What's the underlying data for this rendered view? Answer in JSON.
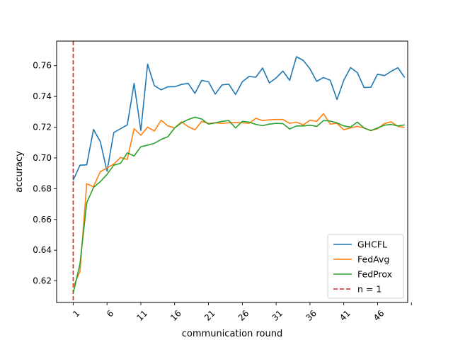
{
  "chart_data": {
    "type": "line",
    "title": "",
    "xlabel": "communication round",
    "ylabel": "accuracy",
    "xlim": [
      -1.45,
      50.45
    ],
    "ylim": [
      0.606,
      0.776
    ],
    "xticks": [
      1,
      6,
      11,
      16,
      21,
      26,
      31,
      36,
      41,
      46,
      51
    ],
    "xtick_labels": [
      "1",
      "6",
      "11",
      "16",
      "21",
      "26",
      "31",
      "36",
      "41",
      "46",
      ""
    ],
    "yticks": [
      0.62,
      0.64,
      0.66,
      0.68,
      0.7,
      0.72,
      0.74,
      0.76
    ],
    "ytick_labels": [
      "0.62",
      "0.64",
      "0.66",
      "0.68",
      "0.70",
      "0.72",
      "0.74",
      "0.76"
    ],
    "grid": false,
    "legend_position": "lower-right",
    "series": [
      {
        "name": "GHCFL",
        "color": "#1f77b4",
        "x_start": 1,
        "values": [
          0.6855,
          0.6953,
          0.6955,
          0.7185,
          0.7107,
          0.6913,
          0.7165,
          0.719,
          0.7215,
          0.7485,
          0.7178,
          0.761,
          0.747,
          0.7443,
          0.7463,
          0.7463,
          0.7478,
          0.7485,
          0.742,
          0.7505,
          0.7495,
          0.7415,
          0.7475,
          0.748,
          0.7413,
          0.7495,
          0.753,
          0.7525,
          0.7585,
          0.7488,
          0.752,
          0.7565,
          0.7505,
          0.7658,
          0.7635,
          0.758,
          0.7498,
          0.7523,
          0.7505,
          0.738,
          0.7505,
          0.7588,
          0.7555,
          0.7458,
          0.746,
          0.7545,
          0.7535,
          0.7563,
          0.7587,
          0.7523
        ]
      },
      {
        "name": "FedAvg",
        "color": "#ff7f0e",
        "x_start": 1,
        "values": [
          0.616,
          0.6262,
          0.6832,
          0.6813,
          0.691,
          0.6935,
          0.696,
          0.7003,
          0.699,
          0.719,
          0.7148,
          0.72,
          0.7175,
          0.7245,
          0.7208,
          0.7195,
          0.7235,
          0.7203,
          0.7183,
          0.7237,
          0.7225,
          0.7228,
          0.7225,
          0.7228,
          0.723,
          0.7228,
          0.7225,
          0.7258,
          0.7243,
          0.7248,
          0.725,
          0.725,
          0.7225,
          0.7233,
          0.7215,
          0.7245,
          0.7238,
          0.7288,
          0.722,
          0.7225,
          0.7183,
          0.7195,
          0.7205,
          0.7195,
          0.7178,
          0.719,
          0.7223,
          0.7235,
          0.7205,
          0.7198
        ]
      },
      {
        "name": "FedProx",
        "color": "#2ca02c",
        "x_start": 1,
        "values": [
          0.612,
          0.631,
          0.6708,
          0.6808,
          0.6845,
          0.6893,
          0.6953,
          0.6965,
          0.7033,
          0.7013,
          0.7073,
          0.7083,
          0.7095,
          0.712,
          0.7138,
          0.7195,
          0.7228,
          0.725,
          0.7265,
          0.7253,
          0.722,
          0.7228,
          0.7238,
          0.7243,
          0.7195,
          0.7238,
          0.7233,
          0.7218,
          0.721,
          0.722,
          0.7225,
          0.7223,
          0.7188,
          0.7208,
          0.7208,
          0.7213,
          0.7205,
          0.7243,
          0.724,
          0.7228,
          0.7208,
          0.72,
          0.7233,
          0.7195,
          0.7178,
          0.7195,
          0.7213,
          0.7218,
          0.7208,
          0.7215
        ]
      }
    ],
    "reference_line": {
      "name": "n = 1",
      "color": "#d62728",
      "x": 1,
      "style": "dashed"
    }
  }
}
